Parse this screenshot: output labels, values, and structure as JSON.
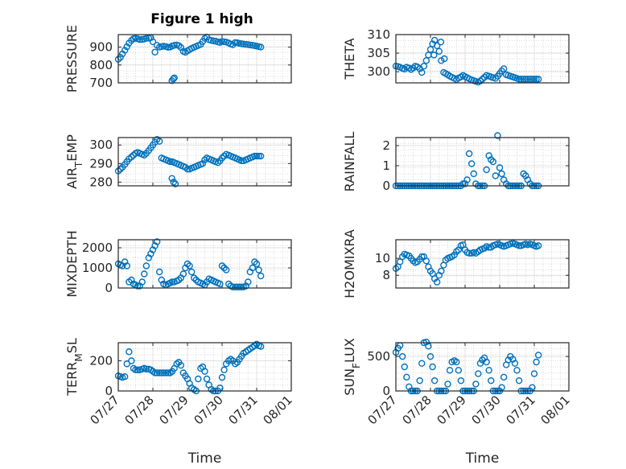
{
  "figure": {
    "title": "Figure 1 high"
  },
  "colors": {
    "marker": "#0072BD",
    "axis": "#262626",
    "grid_major": "#e0e0e0",
    "grid_minor": "#cfcfcf"
  },
  "chart_data": [
    {
      "type": "scatter",
      "ylabel": "PRESSURE",
      "ylim": [
        700,
        970
      ],
      "yticks": [
        "700",
        "800",
        "900"
      ],
      "xlim": [
        0,
        5
      ],
      "x": [
        0.0,
        0.06,
        0.12,
        0.19,
        0.25,
        0.31,
        0.38,
        0.44,
        0.5,
        0.56,
        0.62,
        0.69,
        0.75,
        0.81,
        0.88,
        0.94,
        1.0,
        1.06,
        1.12,
        1.19,
        1.25,
        1.31,
        1.38,
        1.44,
        1.5,
        1.56,
        1.62,
        1.69,
        1.75,
        1.81,
        1.88,
        1.94,
        2.0,
        2.06,
        2.12,
        2.19,
        2.25,
        2.31,
        2.38,
        2.44,
        2.5,
        2.56,
        2.62,
        2.69,
        2.75,
        2.81,
        2.88,
        2.94,
        3.0,
        3.06,
        3.12,
        3.19,
        3.25,
        3.31,
        3.38,
        3.44,
        3.5,
        3.56,
        3.62,
        3.69,
        3.75,
        3.81,
        3.88,
        3.94,
        4.0,
        4.06,
        4.12,
        1.55,
        1.59,
        1.62
      ],
      "y": [
        832,
        843,
        862,
        882,
        902,
        922,
        937,
        947,
        949,
        946,
        942,
        943,
        945,
        949,
        950,
        953,
        930,
        872,
        910,
        900,
        903,
        905,
        903,
        899,
        900,
        906,
        910,
        912,
        908,
        898,
        876,
        871,
        879,
        886,
        893,
        899,
        904,
        909,
        915,
        931,
        949,
        956,
        941,
        937,
        935,
        933,
        929,
        926,
        932,
        930,
        928,
        923,
        917,
        913,
        925,
        924,
        921,
        919,
        917,
        915,
        914,
        912,
        910,
        908,
        905,
        903,
        900,
        712,
        722,
        728
      ]
    },
    {
      "type": "scatter",
      "ylabel": "THETA",
      "ylim": [
        297,
        310
      ],
      "yticks": [
        "300",
        "305",
        "310"
      ],
      "xlim": [
        0,
        5
      ],
      "x": [
        0.0,
        0.06,
        0.12,
        0.19,
        0.25,
        0.31,
        0.38,
        0.44,
        0.5,
        0.56,
        0.62,
        0.69,
        0.75,
        0.81,
        0.88,
        0.94,
        1.0,
        1.06,
        1.12,
        1.19,
        1.25,
        1.31,
        1.38,
        1.44,
        1.5,
        1.56,
        1.62,
        1.69,
        1.75,
        1.81,
        1.88,
        1.94,
        2.0,
        2.06,
        2.12,
        2.19,
        2.25,
        2.31,
        2.38,
        2.44,
        2.5,
        2.56,
        2.62,
        2.69,
        2.75,
        2.81,
        2.88,
        2.94,
        3.0,
        3.06,
        3.12,
        3.19,
        3.25,
        3.31,
        3.38,
        3.44,
        3.5,
        3.56,
        3.62,
        3.69,
        3.75,
        3.81,
        3.88,
        3.94,
        4.0,
        4.06,
        4.12,
        1.3,
        1.4,
        1.1
      ],
      "y": [
        301.5,
        301.4,
        301.2,
        300.9,
        300.7,
        301.2,
        301.0,
        300.6,
        301.0,
        301.5,
        301.3,
        300.8,
        299.8,
        301.5,
        303.0,
        304.5,
        306.0,
        307.5,
        308.5,
        307.0,
        305.5,
        303.0,
        299.8,
        299.5,
        299.2,
        298.8,
        298.5,
        298.2,
        297.9,
        298.3,
        298.6,
        299.0,
        298.7,
        298.4,
        298.1,
        297.8,
        297.6,
        297.4,
        297.2,
        297.5,
        298.0,
        298.5,
        299.0,
        298.8,
        298.6,
        298.4,
        298.2,
        298.8,
        299.5,
        300.2,
        300.8,
        299.2,
        299.0,
        298.8,
        298.6,
        298.4,
        298.2,
        298.0,
        298.0,
        298.0,
        298.0,
        298.0,
        298.0,
        298.0,
        298.0,
        298.0,
        298.0,
        308.0,
        303.5,
        304.5
      ]
    },
    {
      "type": "scatter",
      "ylabel": "AIR_TEMP",
      "ylim": [
        278,
        304
      ],
      "yticks": [
        "280",
        "290",
        "300"
      ],
      "xlim": [
        0,
        5
      ],
      "x": [
        0.0,
        0.06,
        0.12,
        0.19,
        0.25,
        0.31,
        0.38,
        0.44,
        0.5,
        0.56,
        0.62,
        0.69,
        0.75,
        0.81,
        0.88,
        0.94,
        1.0,
        1.06,
        1.12,
        1.19,
        1.25,
        1.31,
        1.38,
        1.44,
        1.5,
        1.56,
        1.62,
        1.69,
        1.75,
        1.81,
        1.88,
        1.94,
        2.0,
        2.06,
        2.12,
        2.19,
        2.25,
        2.31,
        2.38,
        2.44,
        2.5,
        2.56,
        2.62,
        2.69,
        2.75,
        2.81,
        2.88,
        2.94,
        3.0,
        3.06,
        3.12,
        3.19,
        3.25,
        3.31,
        3.38,
        3.44,
        3.5,
        3.56,
        3.62,
        3.69,
        3.75,
        3.81,
        3.88,
        3.94,
        4.0,
        4.06,
        4.12,
        1.55,
        1.6,
        1.65
      ],
      "y": [
        286,
        287,
        288,
        289.5,
        291,
        292.5,
        293.5,
        294.5,
        295.5,
        296,
        295.5,
        295,
        294.5,
        295.5,
        297,
        298.5,
        300,
        301.5,
        303,
        302,
        293,
        292.5,
        292,
        291.5,
        291,
        291,
        290.5,
        290,
        289.5,
        289,
        288.5,
        288,
        287,
        287,
        287.5,
        288,
        288.5,
        289,
        289.5,
        290,
        292,
        293,
        292.5,
        292,
        291.5,
        291,
        290.5,
        291.5,
        293,
        294,
        295,
        294.5,
        294,
        293.5,
        293,
        292.5,
        292,
        291.5,
        291.5,
        292,
        292.5,
        293,
        293.5,
        294,
        294,
        294,
        294,
        282,
        280,
        279
      ]
    },
    {
      "type": "scatter",
      "ylabel": "RAINFALL",
      "ylim": [
        0,
        2.4
      ],
      "yticks": [
        "0",
        "1",
        "2"
      ],
      "xlim": [
        0,
        5
      ],
      "x": [
        0.0,
        0.06,
        0.12,
        0.19,
        0.25,
        0.31,
        0.38,
        0.44,
        0.5,
        0.56,
        0.62,
        0.69,
        0.75,
        0.81,
        0.88,
        0.94,
        1.0,
        1.06,
        1.12,
        1.19,
        1.25,
        1.31,
        1.38,
        1.44,
        1.5,
        1.56,
        1.62,
        1.69,
        1.75,
        1.81,
        1.88,
        1.94,
        2.0,
        2.06,
        2.12,
        2.19,
        2.25,
        2.31,
        2.38,
        2.44,
        2.5,
        2.56,
        2.62,
        2.69,
        2.75,
        2.81,
        2.88,
        2.94,
        3.0,
        3.06,
        3.12,
        3.19,
        3.25,
        3.31,
        3.38,
        3.44,
        3.5,
        3.56,
        3.62,
        3.69,
        3.75,
        3.81,
        3.88,
        3.94,
        4.0,
        4.06,
        4.12
      ],
      "y": [
        0,
        0,
        0,
        0,
        0,
        0,
        0,
        0,
        0,
        0,
        0,
        0,
        0,
        0,
        0,
        0,
        0,
        0,
        0,
        0,
        0,
        0,
        0,
        0,
        0,
        0,
        0,
        0,
        0,
        0,
        0,
        0.1,
        0.1,
        0.3,
        1.6,
        1.1,
        0.6,
        0.1,
        0,
        0,
        0,
        0,
        0.8,
        1.5,
        1.3,
        1.2,
        0.5,
        2.5,
        0.9,
        0.6,
        0.3,
        0.1,
        0,
        0,
        0,
        0,
        0,
        0,
        0,
        0.6,
        0.5,
        0.3,
        0.1,
        0,
        0,
        0,
        0
      ]
    },
    {
      "type": "scatter",
      "ylabel": "MIXDEPTH",
      "ylim": [
        0,
        2400
      ],
      "yticks": [
        "0",
        "1000",
        "2000"
      ],
      "xlim": [
        0,
        5
      ],
      "x": [
        0.0,
        0.06,
        0.12,
        0.19,
        0.25,
        0.31,
        0.38,
        0.44,
        0.5,
        0.56,
        0.62,
        0.69,
        0.75,
        0.81,
        0.88,
        0.94,
        1.0,
        1.06,
        1.12,
        1.19,
        1.25,
        1.31,
        1.38,
        1.44,
        1.5,
        1.56,
        1.62,
        1.69,
        1.75,
        1.81,
        1.88,
        1.94,
        2.0,
        2.06,
        2.12,
        2.19,
        2.25,
        2.31,
        2.38,
        2.44,
        2.5,
        2.56,
        2.62,
        2.69,
        2.75,
        2.81,
        2.88,
        2.94,
        3.0,
        3.06,
        3.12,
        3.19,
        3.25,
        3.31,
        3.38,
        3.44,
        3.5,
        3.56,
        3.62,
        3.69,
        3.75,
        3.81,
        3.88,
        3.94,
        4.0,
        4.06,
        4.12
      ],
      "y": [
        1200,
        1150,
        1100,
        1300,
        1100,
        300,
        400,
        200,
        150,
        100,
        100,
        300,
        700,
        1100,
        1500,
        1700,
        1900,
        2100,
        2300,
        800,
        400,
        200,
        150,
        200,
        250,
        300,
        300,
        350,
        400,
        500,
        700,
        1000,
        1200,
        1100,
        800,
        500,
        400,
        300,
        250,
        200,
        150,
        300,
        450,
        400,
        350,
        300,
        250,
        200,
        1100,
        1000,
        900,
        200,
        100,
        50,
        50,
        50,
        50,
        50,
        50,
        100,
        300,
        800,
        1000,
        1300,
        1200,
        900,
        600
      ]
    },
    {
      "type": "scatter",
      "ylabel": "H2OMIXRA",
      "ylim": [
        6.5,
        12.2
      ],
      "yticks": [
        "8",
        "10"
      ],
      "xlim": [
        0,
        5
      ],
      "x": [
        0.0,
        0.06,
        0.12,
        0.19,
        0.25,
        0.31,
        0.38,
        0.44,
        0.5,
        0.56,
        0.62,
        0.69,
        0.75,
        0.81,
        0.88,
        0.94,
        1.0,
        1.06,
        1.12,
        1.19,
        1.25,
        1.31,
        1.38,
        1.44,
        1.5,
        1.56,
        1.62,
        1.69,
        1.75,
        1.81,
        1.88,
        1.94,
        2.0,
        2.06,
        2.12,
        2.19,
        2.25,
        2.31,
        2.38,
        2.44,
        2.5,
        2.56,
        2.62,
        2.69,
        2.75,
        2.81,
        2.88,
        2.94,
        3.0,
        3.06,
        3.12,
        3.19,
        3.25,
        3.31,
        3.38,
        3.44,
        3.5,
        3.56,
        3.62,
        3.69,
        3.75,
        3.81,
        3.88,
        3.94,
        4.0,
        4.06,
        4.12
      ],
      "y": [
        8.8,
        9.0,
        9.6,
        10.2,
        10.5,
        10.4,
        10.3,
        10.0,
        9.7,
        9.5,
        9.6,
        9.9,
        10.2,
        10.2,
        9.7,
        9.0,
        8.5,
        8.2,
        7.6,
        7.2,
        8.0,
        8.5,
        9.2,
        9.8,
        10.0,
        10.1,
        10.2,
        10.4,
        10.8,
        11.0,
        11.5,
        11.6,
        11.0,
        10.7,
        10.6,
        10.6,
        10.7,
        10.6,
        10.8,
        11.0,
        11.1,
        11.2,
        11.4,
        11.3,
        11.3,
        11.5,
        11.6,
        11.7,
        11.6,
        11.5,
        11.4,
        11.5,
        11.6,
        11.7,
        11.8,
        11.7,
        11.6,
        11.5,
        11.5,
        11.6,
        11.7,
        11.6,
        11.7,
        11.6,
        11.5,
        11.4,
        11.5
      ]
    },
    {
      "type": "scatter",
      "ylabel": "TERR_MSL",
      "ylim": [
        0,
        320
      ],
      "yticks": [
        "0",
        "200"
      ],
      "xlim": [
        0,
        5
      ],
      "x": [
        0.0,
        0.06,
        0.12,
        0.19,
        0.25,
        0.31,
        0.38,
        0.44,
        0.5,
        0.56,
        0.62,
        0.69,
        0.75,
        0.81,
        0.88,
        0.94,
        1.0,
        1.06,
        1.12,
        1.19,
        1.25,
        1.31,
        1.38,
        1.44,
        1.5,
        1.56,
        1.62,
        1.69,
        1.75,
        1.81,
        1.88,
        1.94,
        2.0,
        2.06,
        2.12,
        2.19,
        2.25,
        2.31,
        2.38,
        2.44,
        2.5,
        2.56,
        2.62,
        2.69,
        2.75,
        2.81,
        2.88,
        2.94,
        3.0,
        3.06,
        3.12,
        3.19,
        3.25,
        3.31,
        3.38,
        3.44,
        3.5,
        3.56,
        3.62,
        3.69,
        3.75,
        3.81,
        3.88,
        3.94,
        4.0,
        4.06,
        4.12
      ],
      "y": [
        100,
        95,
        90,
        95,
        180,
        260,
        200,
        150,
        140,
        140,
        140,
        145,
        150,
        145,
        145,
        140,
        130,
        120,
        120,
        120,
        120,
        120,
        120,
        120,
        120,
        130,
        150,
        180,
        190,
        170,
        120,
        100,
        80,
        50,
        20,
        10,
        0,
        80,
        150,
        160,
        130,
        80,
        40,
        10,
        0,
        0,
        0,
        20,
        90,
        140,
        180,
        200,
        210,
        200,
        180,
        190,
        210,
        230,
        250,
        260,
        270,
        280,
        290,
        300,
        310,
        300,
        295
      ]
    },
    {
      "type": "scatter",
      "ylabel": "SUN_FLUX",
      "ylim": [
        0,
        700
      ],
      "yticks": [
        "0",
        "500"
      ],
      "xlim": [
        0,
        5
      ],
      "x": [
        0.0,
        0.06,
        0.12,
        0.19,
        0.25,
        0.31,
        0.38,
        0.44,
        0.5,
        0.56,
        0.62,
        0.69,
        0.75,
        0.81,
        0.88,
        0.94,
        1.0,
        1.06,
        1.12,
        1.19,
        1.25,
        1.31,
        1.38,
        1.44,
        1.5,
        1.56,
        1.62,
        1.69,
        1.75,
        1.81,
        1.88,
        1.94,
        2.0,
        2.06,
        2.12,
        2.19,
        2.25,
        2.31,
        2.38,
        2.44,
        2.5,
        2.56,
        2.62,
        2.69,
        2.75,
        2.81,
        2.88,
        2.94,
        3.0,
        3.06,
        3.12,
        3.19,
        3.25,
        3.31,
        3.38,
        3.44,
        3.5,
        3.56,
        3.62,
        3.69,
        3.75,
        3.81,
        3.88,
        3.94,
        4.0,
        4.06,
        4.12
      ],
      "y": [
        560,
        620,
        660,
        500,
        350,
        200,
        60,
        0,
        0,
        0,
        0,
        150,
        400,
        700,
        710,
        650,
        500,
        350,
        150,
        0,
        0,
        0,
        0,
        0,
        100,
        300,
        420,
        440,
        420,
        300,
        150,
        0,
        0,
        0,
        0,
        0,
        0,
        100,
        250,
        400,
        450,
        480,
        420,
        300,
        150,
        0,
        0,
        0,
        0,
        50,
        200,
        380,
        450,
        500,
        460,
        400,
        300,
        150,
        0,
        0,
        0,
        0,
        0,
        50,
        250,
        420,
        520
      ]
    }
  ],
  "x_axis": {
    "ticks": [
      "07/27",
      "07/28",
      "07/29",
      "07/30",
      "07/31",
      "08/01"
    ],
    "label": "Time"
  }
}
